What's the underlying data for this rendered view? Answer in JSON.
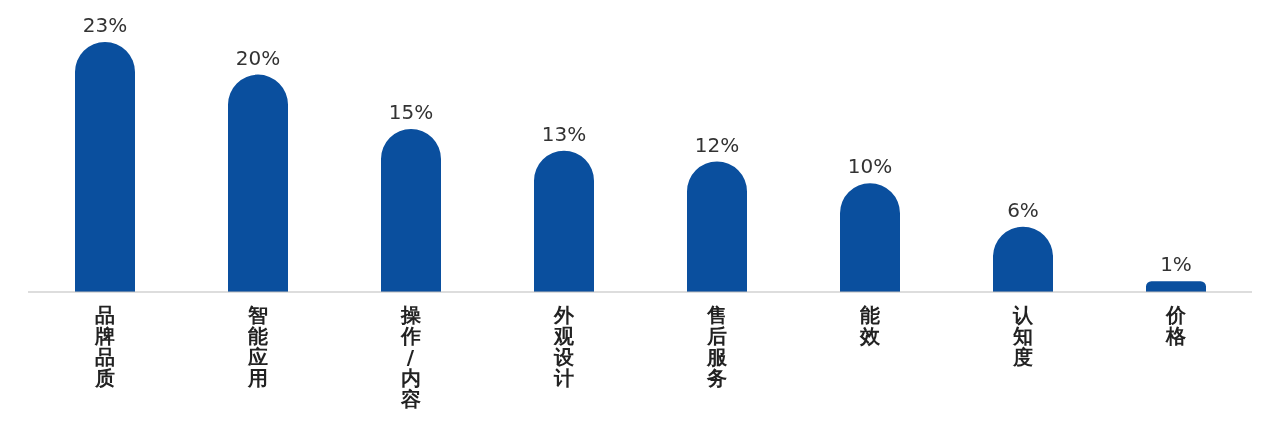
{
  "chart_data": {
    "type": "bar",
    "categories": [
      "品牌品质",
      "智能应用",
      "操作/内容",
      "外观设计",
      "售后服务",
      "能效",
      "认知度",
      "价格"
    ],
    "values": [
      23,
      20,
      15,
      13,
      12,
      10,
      6,
      1
    ],
    "value_labels": [
      "23%",
      "20%",
      "15%",
      "13%",
      "12%",
      "10%",
      "6%",
      "1%"
    ],
    "color": "#0a4f9e",
    "grid": false,
    "legend": false
  }
}
